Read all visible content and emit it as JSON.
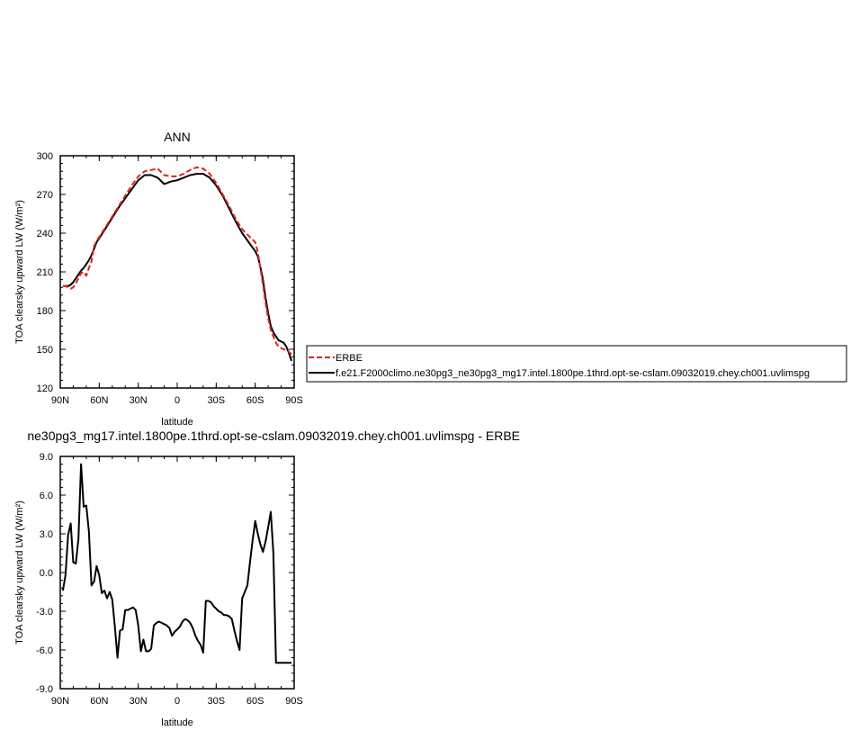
{
  "chart_data": [
    {
      "type": "line",
      "title": "ANN",
      "xlabel": "latitude",
      "ylabel": "TOA clearsky upward LW (W/m²)",
      "xlim": [
        90,
        -90
      ],
      "ylim": [
        120,
        300
      ],
      "xticks": [
        90,
        60,
        30,
        0,
        -30,
        -60,
        -90
      ],
      "xtick_labels": [
        "90N",
        "60N",
        "30N",
        "0",
        "30S",
        "60S",
        "90S"
      ],
      "yticks": [
        120,
        150,
        180,
        210,
        240,
        270,
        300
      ],
      "ytick_labels": [
        "120",
        "150",
        "180",
        "210",
        "240",
        "270",
        "300"
      ],
      "legend_position": "right",
      "series": [
        {
          "name": "ERBE",
          "color": "#e02020",
          "style": "dashed",
          "x": [
            88,
            86,
            84,
            82,
            80,
            78,
            76,
            74,
            72,
            70,
            68,
            66,
            64,
            62,
            60,
            55,
            50,
            45,
            40,
            35,
            30,
            25,
            20,
            15,
            10,
            5,
            0,
            -5,
            -10,
            -15,
            -20,
            -25,
            -30,
            -35,
            -40,
            -45,
            -50,
            -55,
            -60,
            -62,
            -64,
            -66,
            -68,
            -70,
            -72,
            -74,
            -76,
            -78,
            -80,
            -82,
            -84,
            -86,
            -88
          ],
          "y": [
            199,
            199,
            198,
            197,
            198,
            201,
            205,
            209,
            210,
            207,
            213,
            218,
            230,
            234,
            237,
            245,
            253,
            261,
            269,
            277,
            284,
            288,
            289,
            290,
            285,
            284,
            284,
            286,
            289,
            291,
            290,
            286,
            279,
            270,
            261,
            251,
            243,
            238,
            233,
            225,
            213,
            200,
            186,
            174,
            165,
            160,
            155,
            152,
            151,
            150,
            149,
            148,
            146
          ]
        },
        {
          "name": "f.e21.F2000climo.ne30pg3_ne30pg3_mg17.intel.1800pe.1thrd.opt-se-cslam.09032019.chey.ch001.uvlimspg",
          "color": "#000000",
          "style": "solid",
          "x": [
            88,
            86,
            84,
            82,
            80,
            78,
            76,
            74,
            72,
            70,
            68,
            66,
            64,
            62,
            60,
            55,
            50,
            45,
            40,
            35,
            30,
            25,
            20,
            15,
            10,
            5,
            0,
            -5,
            -10,
            -15,
            -20,
            -25,
            -30,
            -35,
            -40,
            -45,
            -50,
            -55,
            -60,
            -62,
            -64,
            -66,
            -68,
            -70,
            -72,
            -74,
            -76,
            -78,
            -80,
            -82,
            -84,
            -86,
            -88
          ],
          "y": [
            199,
            199,
            199,
            200,
            202,
            205,
            208,
            211,
            213,
            216,
            219,
            223,
            228,
            233,
            236,
            244,
            252,
            260,
            267,
            274,
            281,
            285,
            285,
            283,
            278,
            280,
            281,
            283,
            285,
            286,
            286,
            283,
            277,
            269,
            259,
            249,
            240,
            233,
            226,
            222,
            214,
            204,
            190,
            178,
            168,
            163,
            160,
            157,
            156,
            155,
            152,
            147,
            141
          ]
        }
      ]
    },
    {
      "type": "line",
      "title": "ne30pg3_mg17.intel.1800pe.1thrd.opt-se-cslam.09032019.chey.ch001.uvlimspg - ERBE",
      "xlabel": "latitude",
      "ylabel": "TOA clearsky upward LW (W/m²)",
      "xlim": [
        90,
        -90
      ],
      "ylim": [
        -9,
        9
      ],
      "xticks": [
        90,
        60,
        30,
        0,
        -30,
        -60,
        -90
      ],
      "xtick_labels": [
        "90N",
        "60N",
        "30N",
        "0",
        "30S",
        "60S",
        "90S"
      ],
      "yticks": [
        -9,
        -6,
        -3,
        0,
        3,
        6,
        9
      ],
      "ytick_labels": [
        "-9.0",
        "-6.0",
        "-3.0",
        "0.0",
        "3.0",
        "6.0",
        "9.0"
      ],
      "series": [
        {
          "color": "#000000",
          "style": "solid",
          "x": [
            88,
            86,
            84,
            82,
            80,
            78,
            76,
            74,
            72,
            70,
            68,
            66,
            64,
            62,
            60,
            58,
            56,
            54,
            52,
            50,
            48,
            46,
            44,
            42,
            40,
            38,
            36,
            34,
            32,
            30,
            28,
            26,
            24,
            22,
            20,
            18,
            16,
            14,
            12,
            10,
            8,
            6,
            4,
            2,
            0,
            -2,
            -4,
            -6,
            -8,
            -10,
            -12,
            -14,
            -16,
            -18,
            -20,
            -22,
            -24,
            -26,
            -28,
            -30,
            -32,
            -34,
            -36,
            -38,
            -40,
            -42,
            -44,
            -46,
            -48,
            -50,
            -52,
            -54,
            -56,
            -58,
            -60,
            -62,
            -64,
            -66,
            -68,
            -70,
            -72,
            -74,
            -76,
            -78,
            -80,
            -82,
            -84,
            -86,
            -88
          ],
          "y": [
            -1.4,
            -0.2,
            2.9,
            3.8,
            0.8,
            0.7,
            2.6,
            8.4,
            5.1,
            5.2,
            3.2,
            -1.0,
            -0.7,
            0.5,
            -0.2,
            -1.6,
            -1.4,
            -2.0,
            -1.5,
            -2.1,
            -4.2,
            -6.6,
            -4.5,
            -4.4,
            -2.9,
            -2.9,
            -2.8,
            -2.7,
            -2.9,
            -4.1,
            -6.1,
            -5.2,
            -6.1,
            -6.1,
            -5.9,
            -4.1,
            -3.9,
            -3.8,
            -3.9,
            -4.0,
            -4.1,
            -4.3,
            -4.9,
            -4.6,
            -4.4,
            -4.2,
            -3.8,
            -3.6,
            -3.7,
            -3.9,
            -4.3,
            -4.9,
            -5.3,
            -5.6,
            -6.2,
            -2.2,
            -2.2,
            -2.3,
            -2.6,
            -2.8,
            -3.0,
            -3.1,
            -3.3,
            -3.3,
            -3.4,
            -3.6,
            -4.5,
            -5.3,
            -6.0,
            -2.0,
            -1.5,
            -1.0,
            0.8,
            2.5,
            4.0,
            3.0,
            2.2,
            1.6,
            2.4,
            3.5,
            4.7,
            1.5,
            -7.0,
            -7.0,
            -7.0,
            -7.0,
            -7.0,
            -7.0,
            -7.0
          ]
        }
      ]
    }
  ]
}
